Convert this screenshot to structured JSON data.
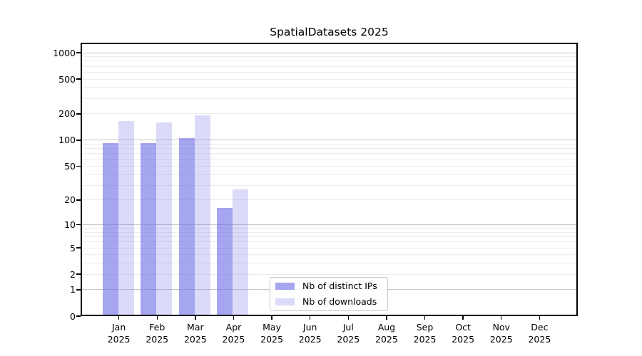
{
  "window": {
    "background": "#ffffff"
  },
  "chart_data": {
    "type": "bar",
    "title": "SpatialDatasets 2025",
    "categories": [
      "Jan",
      "Feb",
      "Mar",
      "Apr",
      "May",
      "Jun",
      "Jul",
      "Aug",
      "Sep",
      "Oct",
      "Nov",
      "Dec"
    ],
    "category_year": "2025",
    "series": [
      {
        "name": "Nb of distinct IPs",
        "color": "rgba(110,110,230,0.62)",
        "values": [
          93,
          93,
          105,
          16,
          0,
          0,
          0,
          0,
          0,
          0,
          0,
          0
        ]
      },
      {
        "name": "Nb of downloads",
        "color": "rgba(110,110,230,0.25)",
        "values": [
          165,
          160,
          193,
          27,
          0,
          0,
          0,
          0,
          0,
          0,
          0,
          0
        ]
      }
    ],
    "yaxis": {
      "ticks": [
        0,
        1,
        2,
        5,
        10,
        20,
        50,
        100,
        200,
        500,
        1000
      ],
      "scale": "log10(value+1)",
      "ylim": [
        0,
        1300
      ]
    },
    "xlabel": "",
    "ylabel": "",
    "grid": {
      "enabled": true,
      "major_color": "#c7c7c7",
      "minor_color": "#ececec"
    },
    "legend": {
      "position": "bottom-center"
    }
  }
}
